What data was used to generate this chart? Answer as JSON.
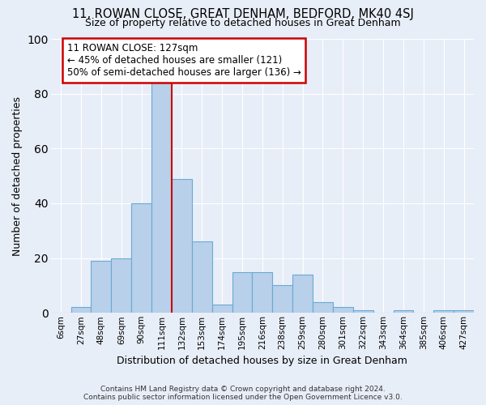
{
  "title": "11, ROWAN CLOSE, GREAT DENHAM, BEDFORD, MK40 4SJ",
  "subtitle": "Size of property relative to detached houses in Great Denham",
  "xlabel": "Distribution of detached houses by size in Great Denham",
  "ylabel": "Number of detached properties",
  "bar_color": "#b8d0ea",
  "bar_edge_color": "#6aaad4",
  "categories": [
    "6sqm",
    "27sqm",
    "48sqm",
    "69sqm",
    "90sqm",
    "111sqm",
    "132sqm",
    "153sqm",
    "174sqm",
    "195sqm",
    "216sqm",
    "238sqm",
    "259sqm",
    "280sqm",
    "301sqm",
    "322sqm",
    "343sqm",
    "364sqm",
    "385sqm",
    "406sqm",
    "427sqm"
  ],
  "values": [
    0,
    2,
    19,
    20,
    40,
    84,
    49,
    26,
    3,
    15,
    15,
    10,
    14,
    4,
    2,
    1,
    0,
    1,
    0,
    1,
    1
  ],
  "ylim": [
    0,
    100
  ],
  "yticks": [
    0,
    20,
    40,
    60,
    80,
    100
  ],
  "property_line_x": 5.5,
  "annotation_text": "11 ROWAN CLOSE: 127sqm\n← 45% of detached houses are smaller (121)\n50% of semi-detached houses are larger (136) →",
  "annotation_box_color": "white",
  "annotation_box_edge_color": "#cc0000",
  "vline_color": "#cc0000",
  "background_color": "#e8eef8",
  "grid_color": "white",
  "footer": "Contains HM Land Registry data © Crown copyright and database right 2024.\nContains public sector information licensed under the Open Government Licence v3.0."
}
